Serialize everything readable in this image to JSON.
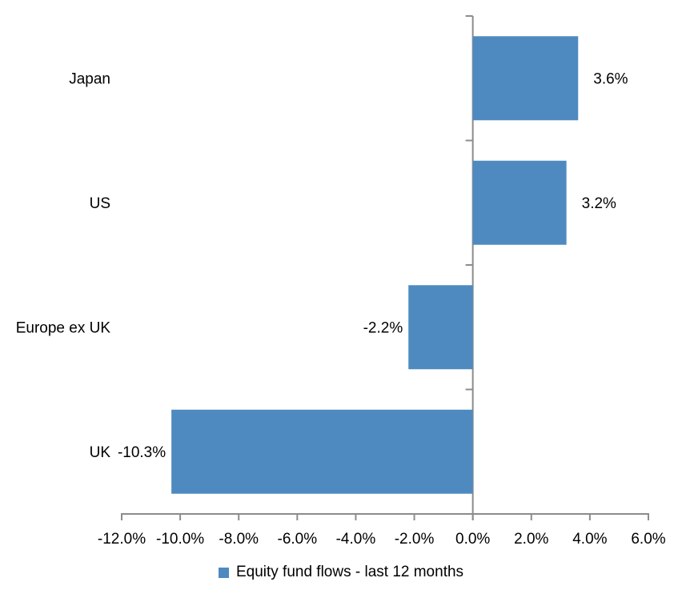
{
  "colors": {
    "bar": "#4E8AC0",
    "axis": "#8C8C8C",
    "text": "#000000",
    "background": "#FFFFFF"
  },
  "chart_data": {
    "type": "bar",
    "orientation": "horizontal",
    "title": "",
    "xlabel": "",
    "ylabel": "",
    "series_name": "Equity fund flows - last 12 months",
    "categories": [
      "Japan",
      "US",
      "Europe ex UK",
      "UK"
    ],
    "values": [
      3.6,
      3.2,
      -2.2,
      -10.3
    ],
    "data_labels": [
      "3.6%",
      "3.2%",
      "-2.2%",
      "-10.3%"
    ],
    "xlim": [
      -12,
      6
    ],
    "x_ticks": [
      -12,
      -10,
      -8,
      -6,
      -4,
      -2,
      0,
      2,
      4,
      6
    ],
    "x_tick_labels": [
      "-12.0%",
      "-10.0%",
      "-8.0%",
      "-6.0%",
      "-4.0%",
      "-2.0%",
      "0.0%",
      "2.0%",
      "4.0%",
      "6.0%"
    ],
    "grid": false,
    "legend_position": "bottom"
  }
}
